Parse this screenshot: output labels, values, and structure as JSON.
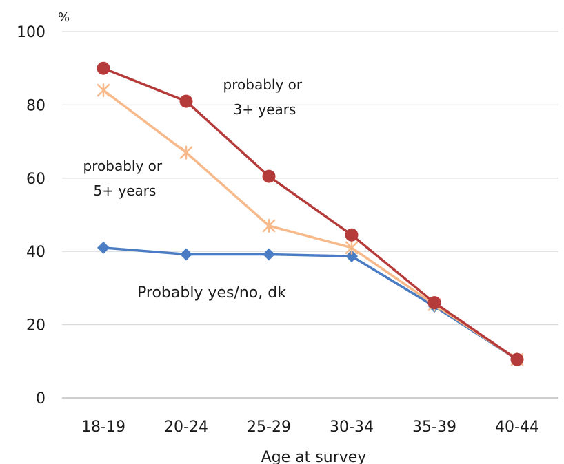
{
  "chart_data": {
    "type": "line",
    "unit_label": "%",
    "xlabel": "Age at survey",
    "ylabel": "",
    "categories": [
      "18-19",
      "20-24",
      "25-29",
      "30-34",
      "35-39",
      "40-44"
    ],
    "ylim": [
      0,
      100
    ],
    "yticks": [
      "0",
      "20",
      "40",
      "60",
      "80",
      "100"
    ],
    "grid": true,
    "series": [
      {
        "name": "probably or 3+ years",
        "values": [
          90,
          81,
          60.5,
          44.5,
          26,
          10.5
        ],
        "color": "#b53a3a",
        "marker": "circle"
      },
      {
        "name": "probably or 5+ years",
        "values": [
          84,
          67,
          47,
          41,
          25.5,
          10.5
        ],
        "color": "#f7b98a",
        "marker": "star"
      },
      {
        "name": "Probably yes/no, dk",
        "values": [
          41,
          39.2,
          39.2,
          38.7,
          25,
          10.5
        ],
        "color": "#4a7cc4",
        "marker": "diamond"
      }
    ],
    "annotations": [
      {
        "lines": [
          "probably or",
          "3+ years"
        ]
      },
      {
        "lines": [
          "probably or",
          "5+ years"
        ]
      },
      {
        "lines": [
          "Probably yes/no, dk"
        ]
      }
    ]
  }
}
